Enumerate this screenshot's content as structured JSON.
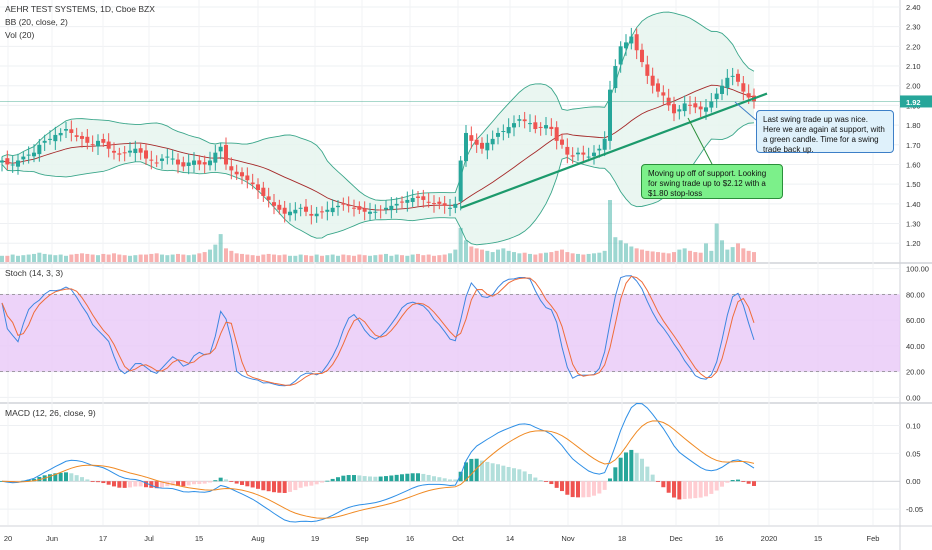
{
  "legend": {
    "symbol": "AEHR TEST SYSTEMS, 1D, Cboe BZX",
    "bb": "BB (20, close, 2)",
    "vol": "Vol (20)",
    "stoch": "Stoch (14, 3, 3)",
    "macd": "MACD (12, 26, close, 9)"
  },
  "price_badge": "1.92",
  "annotations": {
    "support_note": "Last swing trade up was nice.  Here we are again at support, with a green candle.  Time for a swing trade back up.",
    "swing_note": "Moving up off of support.  Looking for swing trade up to $2.12 with a $1.80 stop-loss"
  },
  "colors": {
    "up": "#26a69a",
    "down": "#ef5350",
    "bb_fill": "#e6f4ee",
    "bb_band": "#3aa68a",
    "basis": "#a52a2a",
    "trend": "#1c9a6c",
    "stoch_fill": "#e8c8f7",
    "k_line": "#3d86e0",
    "d_line": "#ef6c3a",
    "macd_line": "#2e8fe6",
    "signal_line": "#f08a24"
  },
  "chart_data": [
    {
      "type": "candlestick",
      "title": "AEHR TEST SYSTEMS, 1D, Cboe BZX",
      "ylim": [
        1.12,
        2.42
      ],
      "y_ticks": [
        "2.40",
        "2.30",
        "2.20",
        "2.10",
        "2.00",
        "1.90",
        "1.80",
        "1.70",
        "1.60",
        "1.50",
        "1.40",
        "1.30",
        "1.20"
      ],
      "x_ticks": [
        "20",
        "Jun",
        "17",
        "Jul",
        "15",
        "Aug",
        "19",
        "Sep",
        "16",
        "Oct",
        "14",
        "Nov",
        "18",
        "Dec",
        "16",
        "2020",
        "15",
        "Feb"
      ],
      "current_price": 1.92,
      "support_line": {
        "from": 1.38,
        "to": 1.96
      },
      "annotations": [
        "Last swing trade up was nice.  Here we are again at support, with a green candle.  Time for a swing trade back up.",
        "Moving up off of support.  Looking for swing trade up to $2.12 with a $1.80 stop-loss"
      ],
      "close": [
        1.62,
        1.6,
        1.6,
        1.62,
        1.64,
        1.65,
        1.66,
        1.7,
        1.72,
        1.73,
        1.75,
        1.76,
        1.78,
        1.76,
        1.74,
        1.73,
        1.71,
        1.7,
        1.72,
        1.71,
        1.68,
        1.66,
        1.65,
        1.66,
        1.67,
        1.68,
        1.66,
        1.63,
        1.62,
        1.61,
        1.63,
        1.64,
        1.63,
        1.6,
        1.59,
        1.61,
        1.62,
        1.6,
        1.6,
        1.62,
        1.66,
        1.69,
        1.6,
        1.57,
        1.55,
        1.54,
        1.52,
        1.5,
        1.47,
        1.44,
        1.42,
        1.39,
        1.37,
        1.35,
        1.36,
        1.37,
        1.38,
        1.36,
        1.34,
        1.35,
        1.36,
        1.37,
        1.38,
        1.39,
        1.4,
        1.39,
        1.38,
        1.37,
        1.36,
        1.36,
        1.36,
        1.37,
        1.38,
        1.39,
        1.4,
        1.41,
        1.42,
        1.43,
        1.43,
        1.42,
        1.41,
        1.4,
        1.4,
        1.39,
        1.38,
        1.4,
        1.62,
        1.76,
        1.72,
        1.7,
        1.68,
        1.71,
        1.73,
        1.76,
        1.77,
        1.79,
        1.81,
        1.83,
        1.82,
        1.81,
        1.78,
        1.79,
        1.8,
        1.78,
        1.72,
        1.7,
        1.65,
        1.64,
        1.66,
        1.65,
        1.64,
        1.66,
        1.68,
        1.73,
        1.98,
        2.1,
        2.2,
        2.22,
        2.25,
        2.18,
        2.12,
        2.05,
        2.0,
        1.97,
        1.95,
        1.9,
        1.86,
        1.88,
        1.91,
        1.9,
        1.89,
        1.88,
        1.89,
        1.92,
        1.96,
        2.0,
        2.04,
        2.05,
        2.02,
        1.97,
        1.94,
        1.92
      ],
      "volume": [
        0.1,
        0.1,
        0.12,
        0.1,
        0.11,
        0.12,
        0.13,
        0.15,
        0.13,
        0.12,
        0.11,
        0.12,
        0.1,
        0.12,
        0.13,
        0.14,
        0.13,
        0.12,
        0.11,
        0.13,
        0.12,
        0.14,
        0.12,
        0.11,
        0.1,
        0.11,
        0.12,
        0.12,
        0.13,
        0.14,
        0.12,
        0.11,
        0.12,
        0.13,
        0.12,
        0.11,
        0.12,
        0.14,
        0.16,
        0.2,
        0.28,
        0.45,
        0.22,
        0.18,
        0.14,
        0.13,
        0.12,
        0.11,
        0.1,
        0.12,
        0.13,
        0.12,
        0.11,
        0.12,
        0.1,
        0.1,
        0.12,
        0.11,
        0.1,
        0.12,
        0.1,
        0.11,
        0.12,
        0.1,
        0.12,
        0.11,
        0.1,
        0.12,
        0.11,
        0.1,
        0.11,
        0.12,
        0.13,
        0.1,
        0.12,
        0.11,
        0.1,
        0.12,
        0.13,
        0.11,
        0.12,
        0.1,
        0.11,
        0.12,
        0.14,
        0.2,
        0.55,
        0.35,
        0.25,
        0.22,
        0.2,
        0.18,
        0.16,
        0.2,
        0.22,
        0.18,
        0.16,
        0.14,
        0.15,
        0.13,
        0.12,
        0.14,
        0.15,
        0.16,
        0.18,
        0.2,
        0.16,
        0.14,
        0.13,
        0.12,
        0.13,
        0.14,
        0.15,
        0.18,
        1.0,
        0.4,
        0.35,
        0.3,
        0.25,
        0.22,
        0.2,
        0.18,
        0.17,
        0.16,
        0.15,
        0.14,
        0.16,
        0.2,
        0.22,
        0.18,
        0.16,
        0.15,
        0.3,
        0.18,
        0.62,
        0.35,
        0.2,
        0.24,
        0.3,
        0.22,
        0.18,
        0.16
      ]
    },
    {
      "type": "line",
      "title": "Stoch (14, 3, 3)",
      "ylim": [
        -2,
        102
      ],
      "y_ticks": [
        "100.00",
        "80.00",
        "60.00",
        "40.00",
        "20.00",
        "0.00"
      ],
      "band": [
        20,
        80
      ]
    },
    {
      "type": "line",
      "title": "MACD (12, 26, close, 9)",
      "ylim": [
        -0.075,
        0.135
      ],
      "y_ticks": [
        "0.10",
        "0.05",
        "0.00",
        "-0.05"
      ]
    }
  ]
}
